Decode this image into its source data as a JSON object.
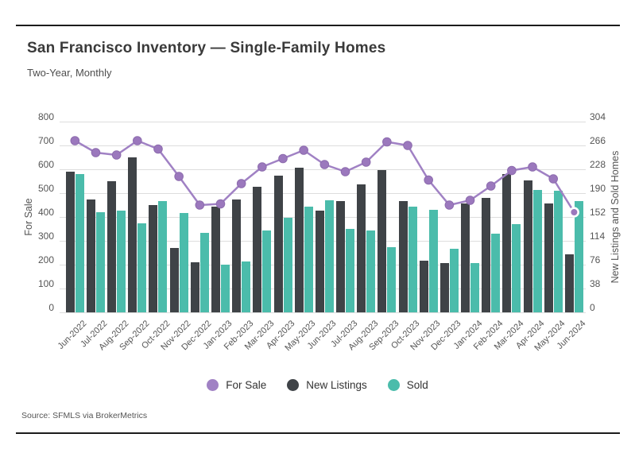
{
  "header": {
    "title": "San Francisco Inventory — Single-Family Homes",
    "subtitle": "Two-Year, Monthly"
  },
  "footer": {
    "source": "Source: SFMLS via BrokerMetrics"
  },
  "legend": [
    {
      "label": "For Sale",
      "color": "#a081c4"
    },
    {
      "label": "New Listings",
      "color": "#3f4347"
    },
    {
      "label": "Sold",
      "color": "#4bbcab"
    }
  ],
  "chart_data": {
    "type": "bar",
    "subtype": "grouped bars with overlaid line, dual axis",
    "title": "San Francisco Inventory — Single-Family Homes",
    "subtitle": "Two-Year, Monthly",
    "categories": [
      "Jun-2022",
      "Jul-2022",
      "Aug-2022",
      "Sep-2022",
      "Oct-2022",
      "Nov-2022",
      "Dec-2022",
      "Jan-2023",
      "Feb-2023",
      "Mar-2023",
      "Apr-2023",
      "May-2023",
      "Jun-2023",
      "Jul-2023",
      "Aug-2023",
      "Sep-2023",
      "Oct-2023",
      "Nov-2023",
      "Dec-2023",
      "Jan-2024",
      "Feb-2024",
      "Mar-2024",
      "Apr-2024",
      "May-2024",
      "Jun-2024"
    ],
    "series": [
      {
        "name": "For Sale",
        "type": "line",
        "axis": "left",
        "color": "#a081c4",
        "marker_color": "#9b78bd",
        "values": [
          720,
          670,
          660,
          720,
          685,
          570,
          450,
          455,
          540,
          610,
          645,
          680,
          620,
          590,
          630,
          715,
          700,
          555,
          450,
          470,
          530,
          595,
          610,
          560,
          420
        ]
      },
      {
        "name": "New Listings",
        "type": "bar",
        "axis": "right",
        "color": "#3f4347",
        "values": [
          224,
          180,
          209,
          247,
          171,
          102,
          80,
          168,
          180,
          200,
          218,
          230,
          162,
          177,
          204,
          227,
          177,
          82,
          78,
          174,
          182,
          220,
          210,
          173,
          92
        ]
      },
      {
        "name": "Sold",
        "type": "bar",
        "axis": "right",
        "color": "#4bbcab",
        "values": [
          220,
          159,
          162,
          142,
          177,
          158,
          127,
          76,
          81,
          131,
          151,
          169,
          178,
          133,
          130,
          104,
          168,
          164,
          101,
          78,
          125,
          140,
          195,
          194,
          177
        ]
      }
    ],
    "left_axis": {
      "title": "For Sale",
      "range": [
        0,
        800
      ],
      "ticks": [
        0,
        100,
        200,
        300,
        400,
        500,
        600,
        700,
        800
      ]
    },
    "right_axis": {
      "title": "New Listings and Sold Homes",
      "range": [
        0,
        304
      ],
      "ticks": [
        0,
        38,
        76,
        114,
        152,
        190,
        228,
        266,
        304
      ]
    },
    "grid": "horizontal",
    "legend_position": "bottom",
    "highlight_last_point": true,
    "highlight_ring_color": "#ffffff"
  }
}
